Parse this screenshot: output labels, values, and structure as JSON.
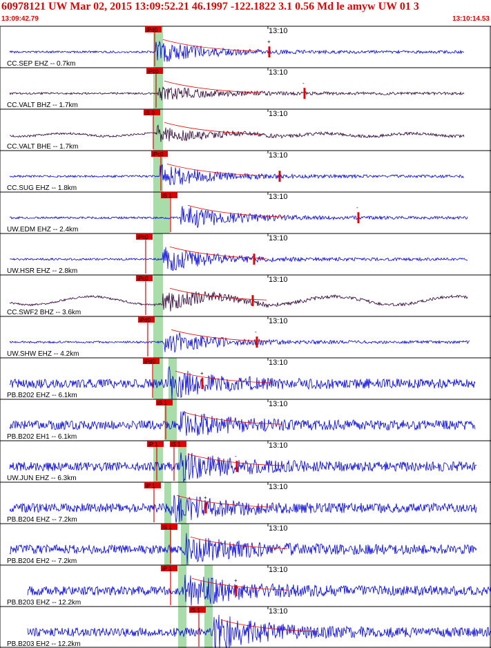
{
  "header": {
    "title": "60978121 UW Mar 02, 2015 13:09:52.21    46.1997 -122.1822  3.1 0.56 Md le amyw UW 01   3",
    "start_time": "13:09:42.79",
    "end_time": "13:10:14.53"
  },
  "colors": {
    "header_text": "#e00000",
    "trace_blue": "#0000e0",
    "trace_dark": "#2a0033",
    "pick_red": "#e00000",
    "window_green": "#a8dca8",
    "border": "#000000"
  },
  "minute_label": "13:10",
  "stations": [
    {
      "label": "CC.SEP EHZ -- 0.7km",
      "trace_color": "blue",
      "pick": "iPd0",
      "pick2": "",
      "end_marker": "+",
      "amp": 0.55
    },
    {
      "label": "CC.VALT BHZ -- 1.7km",
      "trace_color": "dark",
      "pick": "iPc0",
      "pick2": "",
      "end_marker": "-",
      "amp": 0.35
    },
    {
      "label": "CC.VALT BHE -- 1.7km",
      "trace_color": "dark",
      "pick": "iS 0",
      "pick2": "",
      "end_marker": "",
      "amp": 0.35
    },
    {
      "label": "CC.SUG EHZ -- 1.8km",
      "trace_color": "blue",
      "pick": "iPc0",
      "pick2": "",
      "end_marker": "",
      "amp": 0.55
    },
    {
      "label": "UW.EDM EHZ -- 2.4km",
      "trace_color": "blue",
      "pick": "iS 1",
      "pick2": "",
      "end_marker": "-",
      "amp": 0.6
    },
    {
      "label": "UW.HSR EHZ -- 2.8km",
      "trace_color": "blue",
      "pick": "iPc0",
      "pick2": "",
      "end_marker": "",
      "amp": 0.6
    },
    {
      "label": "CC.SWF2 BHZ -- 3.6km",
      "trace_color": "dark",
      "pick": "iPc0",
      "pick2": "",
      "end_marker": "",
      "amp": 0.5
    },
    {
      "label": "UW.SHW EHZ -- 4.2km",
      "trace_color": "blue",
      "pick": "iPd0",
      "pick2": "",
      "end_marker": "-",
      "amp": 0.55
    },
    {
      "label": "PB.B202 EHZ -- 6.1km",
      "trace_color": "blue",
      "pick": "iPd0",
      "pick2": "",
      "end_marker": "+",
      "amp": 0.6
    },
    {
      "label": "PB.B202 EH1 -- 6.1km",
      "trace_color": "blue",
      "pick": "iS 1",
      "pick2": "",
      "end_marker": "",
      "amp": 0.5
    },
    {
      "label": "UW.JUN EHZ -- 6.3km",
      "trace_color": "blue",
      "pick": "iP 1",
      "pick2": "iS 1",
      "end_marker": "-",
      "amp": 0.6
    },
    {
      "label": "PB.B204 EHZ -- 7.2km",
      "trace_color": "blue",
      "pick": "iP 1",
      "pick2": "",
      "end_marker": "+",
      "amp": 0.55
    },
    {
      "label": "PB.B204 EH2 -- 7.2km",
      "trace_color": "blue",
      "pick": "iS 1",
      "pick2": "",
      "end_marker": "",
      "amp": 0.6
    },
    {
      "label": "PB.B203 EHZ -- 12.2km",
      "trace_color": "blue",
      "pick": "iP 1",
      "pick2": "",
      "end_marker": "+",
      "amp": 0.7
    },
    {
      "label": "PB.B203 EH2 -- 12.2km",
      "trace_color": "blue",
      "pick": "iS 1",
      "pick2": "",
      "end_marker": "",
      "amp": 0.75
    }
  ]
}
